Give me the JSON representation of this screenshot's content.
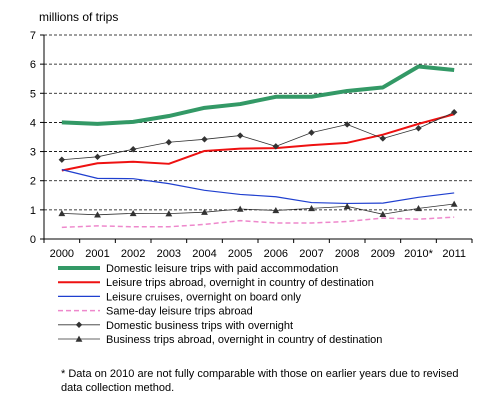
{
  "chart_data": {
    "type": "line",
    "ylabel": "millions of trips",
    "ylim": [
      0,
      7
    ],
    "yticks": [
      0,
      1,
      2,
      3,
      4,
      5,
      6,
      7
    ],
    "categories": [
      "2000",
      "2001",
      "2002",
      "2003",
      "2004",
      "2005",
      "2006",
      "2007",
      "2008",
      "2009",
      "2010*",
      "2011"
    ],
    "grid": "horizontal dashed",
    "legend_position": "bottom",
    "series": [
      {
        "name": "Domestic leisure trips with paid accommodation",
        "color": "#339966",
        "marker": "none",
        "dash": "solid",
        "width": 4,
        "values": [
          4.0,
          3.95,
          4.02,
          4.22,
          4.5,
          4.63,
          4.88,
          4.88,
          5.08,
          5.2,
          5.92,
          5.8
        ]
      },
      {
        "name": "Leisure trips abroad, overnight in country of destination",
        "color": "#ee1111",
        "marker": "none",
        "dash": "solid",
        "width": 2,
        "values": [
          2.35,
          2.6,
          2.65,
          2.58,
          3.02,
          3.1,
          3.12,
          3.22,
          3.3,
          3.58,
          3.95,
          4.28
        ]
      },
      {
        "name": "Leisure cruises, overnight on board only",
        "color": "#1f3fcf",
        "marker": "none",
        "dash": "solid",
        "width": 1.2,
        "values": [
          2.38,
          2.08,
          2.07,
          1.9,
          1.67,
          1.53,
          1.45,
          1.25,
          1.22,
          1.23,
          1.43,
          1.58
        ]
      },
      {
        "name": "Same-day leisure trips abroad",
        "color": "#ee88cc",
        "marker": "none",
        "dash": "5,3",
        "width": 1.5,
        "values": [
          0.4,
          0.45,
          0.42,
          0.42,
          0.5,
          0.63,
          0.55,
          0.55,
          0.6,
          0.72,
          0.68,
          0.75
        ]
      },
      {
        "name": "Domestic business trips with overnight",
        "color": "#333333",
        "marker": "diamond",
        "dash": "solid",
        "width": 0.8,
        "values": [
          2.72,
          2.82,
          3.08,
          3.32,
          3.42,
          3.55,
          3.18,
          3.65,
          3.93,
          3.45,
          3.8,
          4.35
        ]
      },
      {
        "name": "Business trips abroad, overnight in country of destination",
        "color": "#333333",
        "marker": "triangle",
        "dash": "solid",
        "width": 0.8,
        "values": [
          0.88,
          0.83,
          0.88,
          0.87,
          0.92,
          1.03,
          0.98,
          1.05,
          1.12,
          0.85,
          1.05,
          1.2
        ]
      }
    ],
    "footnote": "* Data on 2010 are not fully comparable with those on earlier years due to revised data collection method."
  }
}
